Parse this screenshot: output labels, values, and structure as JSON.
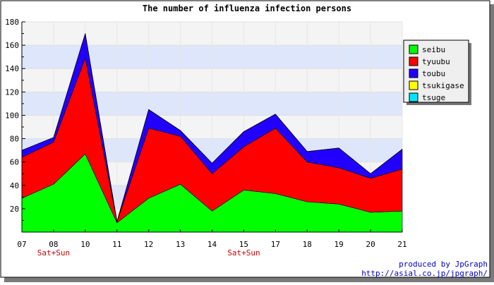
{
  "chart_data": {
    "type": "area",
    "stacked": true,
    "title": "The number of influenza infection persons",
    "categories": [
      "07",
      "08",
      "10",
      "11",
      "12",
      "13",
      "14",
      "15",
      "17",
      "18",
      "19",
      "20",
      "21"
    ],
    "category_notes": [
      "",
      "Sat+Sun",
      "",
      "",
      "",
      "",
      "",
      "Sat+Sun",
      "",
      "",
      "",
      "",
      ""
    ],
    "series": [
      {
        "name": "seibu",
        "color": "#00ff00",
        "values": [
          29,
          41,
          67,
          8,
          29,
          41,
          18,
          36,
          33,
          26,
          24,
          17,
          18
        ]
      },
      {
        "name": "tyuubu",
        "color": "#ff0000",
        "values": [
          35,
          36,
          82,
          1,
          60,
          41,
          32,
          37,
          56,
          34,
          31,
          29,
          36
        ]
      },
      {
        "name": "toubu",
        "color": "#2200ff",
        "values": [
          6,
          4,
          21,
          0,
          16,
          5,
          9,
          13,
          12,
          9,
          17,
          4,
          17
        ]
      },
      {
        "name": "tsukigase",
        "color": "#ffff00",
        "values": [
          0,
          0,
          0,
          0,
          0,
          0,
          0,
          0,
          0,
          0,
          0,
          0,
          0
        ]
      },
      {
        "name": "tsuge",
        "color": "#00e5ff",
        "values": [
          0,
          0,
          0,
          0,
          0,
          0,
          0,
          0,
          0,
          0,
          0,
          0,
          0
        ]
      }
    ],
    "ylim": [
      0,
      180
    ],
    "yticks": [
      20,
      40,
      60,
      80,
      100,
      120,
      140,
      160,
      180
    ],
    "xlabel": "",
    "ylabel": "",
    "grid": true,
    "band_colors": [
      "#dde6fb",
      "#f4f4f4"
    ],
    "legend_position": "right"
  },
  "footer": {
    "credit": "produced by JpGraph",
    "url": "http://asial.co.jp/jpgraph/",
    "color": "#0000cc"
  },
  "note_color": "#cc0000"
}
